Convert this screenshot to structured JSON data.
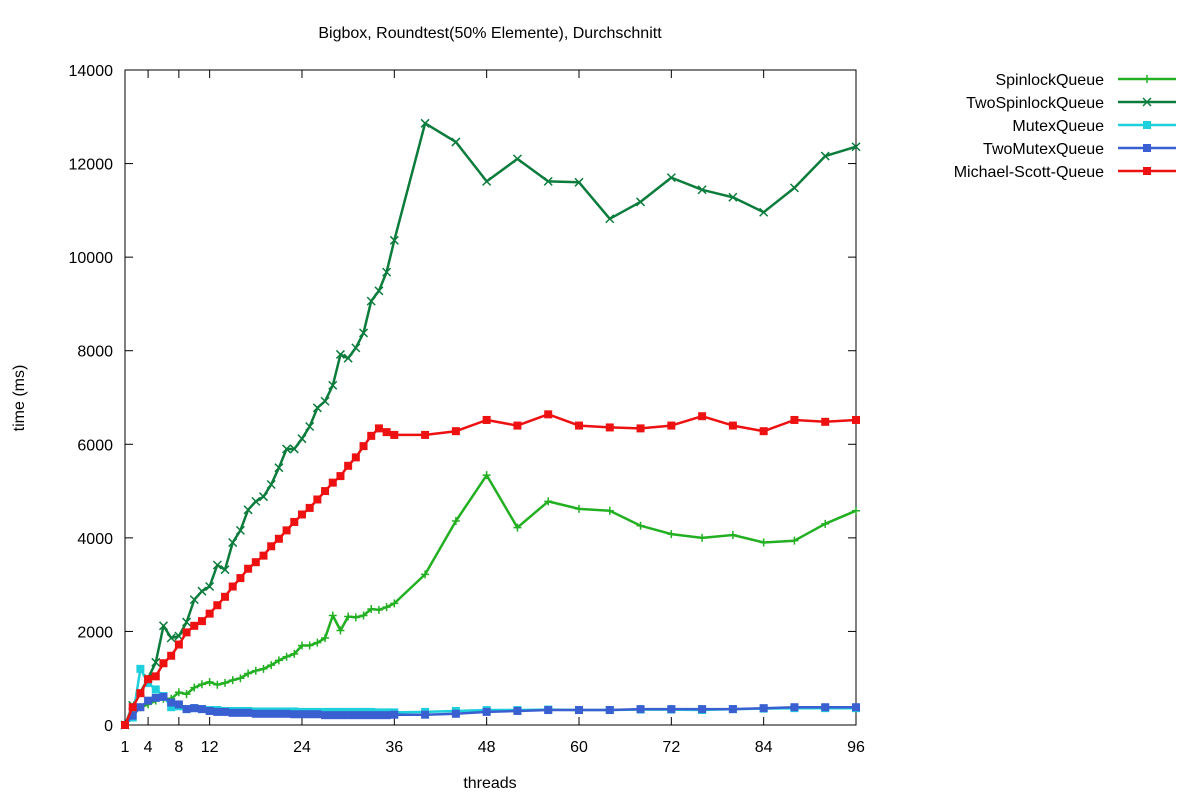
{
  "chart_data": {
    "type": "line",
    "title": "Bigbox, Roundtest(50% Elemente), Durchschnitt",
    "xlabel": "threads",
    "ylabel": "time (ms)",
    "xlim": [
      1,
      96
    ],
    "ylim": [
      0,
      14000
    ],
    "xticks": [
      1,
      4,
      8,
      12,
      24,
      36,
      48,
      60,
      72,
      84,
      96
    ],
    "yticks": [
      0,
      2000,
      4000,
      6000,
      8000,
      10000,
      12000,
      14000
    ],
    "grid": false,
    "legend_position": "top-right, outside plot",
    "series": [
      {
        "name": "SpinlockQueue",
        "color": "#22b022",
        "marker": "plus",
        "points": [
          [
            1,
            0
          ],
          [
            2,
            260
          ],
          [
            3,
            380
          ],
          [
            4,
            440
          ],
          [
            5,
            520
          ],
          [
            6,
            560
          ],
          [
            7,
            560
          ],
          [
            8,
            700
          ],
          [
            9,
            660
          ],
          [
            10,
            800
          ],
          [
            11,
            870
          ],
          [
            12,
            920
          ],
          [
            13,
            860
          ],
          [
            14,
            900
          ],
          [
            15,
            960
          ],
          [
            16,
            1000
          ],
          [
            17,
            1100
          ],
          [
            18,
            1160
          ],
          [
            19,
            1200
          ],
          [
            20,
            1280
          ],
          [
            21,
            1380
          ],
          [
            22,
            1460
          ],
          [
            23,
            1520
          ],
          [
            24,
            1700
          ],
          [
            25,
            1700
          ],
          [
            26,
            1760
          ],
          [
            27,
            1860
          ],
          [
            28,
            2340
          ],
          [
            29,
            2020
          ],
          [
            30,
            2320
          ],
          [
            31,
            2300
          ],
          [
            32,
            2340
          ],
          [
            33,
            2480
          ],
          [
            34,
            2460
          ],
          [
            35,
            2520
          ],
          [
            36,
            2600
          ],
          [
            40,
            3220
          ],
          [
            44,
            4360
          ],
          [
            48,
            5340
          ],
          [
            52,
            4220
          ],
          [
            56,
            4780
          ],
          [
            60,
            4620
          ],
          [
            64,
            4580
          ],
          [
            68,
            4260
          ],
          [
            72,
            4080
          ],
          [
            76,
            4000
          ],
          [
            80,
            4060
          ],
          [
            84,
            3900
          ],
          [
            88,
            3940
          ],
          [
            92,
            4300
          ],
          [
            96,
            4580
          ]
        ]
      },
      {
        "name": "TwoSpinlockQueue",
        "color": "#0b7c3c",
        "marker": "x",
        "points": [
          [
            1,
            0
          ],
          [
            2,
            420
          ],
          [
            3,
            700
          ],
          [
            4,
            1000
          ],
          [
            5,
            1340
          ],
          [
            6,
            2120
          ],
          [
            7,
            1860
          ],
          [
            8,
            1900
          ],
          [
            9,
            2200
          ],
          [
            10,
            2680
          ],
          [
            11,
            2860
          ],
          [
            12,
            2960
          ],
          [
            13,
            3420
          ],
          [
            14,
            3320
          ],
          [
            15,
            3900
          ],
          [
            16,
            4160
          ],
          [
            17,
            4600
          ],
          [
            18,
            4780
          ],
          [
            19,
            4880
          ],
          [
            20,
            5140
          ],
          [
            21,
            5500
          ],
          [
            22,
            5900
          ],
          [
            23,
            5900
          ],
          [
            24,
            6120
          ],
          [
            25,
            6380
          ],
          [
            26,
            6780
          ],
          [
            27,
            6920
          ],
          [
            28,
            7260
          ],
          [
            29,
            7920
          ],
          [
            30,
            7840
          ],
          [
            31,
            8060
          ],
          [
            32,
            8380
          ],
          [
            33,
            9060
          ],
          [
            34,
            9280
          ],
          [
            35,
            9680
          ],
          [
            36,
            10360
          ],
          [
            40,
            12860
          ],
          [
            44,
            12460
          ],
          [
            48,
            11620
          ],
          [
            52,
            12100
          ],
          [
            56,
            11620
          ],
          [
            60,
            11600
          ],
          [
            64,
            10820
          ],
          [
            68,
            11180
          ],
          [
            72,
            11700
          ],
          [
            76,
            11440
          ],
          [
            80,
            11280
          ],
          [
            84,
            10960
          ],
          [
            88,
            11480
          ],
          [
            92,
            12160
          ],
          [
            96,
            12360
          ]
        ]
      },
      {
        "name": "MutexQueue",
        "color": "#1ecfdc",
        "marker": "square",
        "points": [
          [
            1,
            0
          ],
          [
            2,
            160
          ],
          [
            3,
            1200
          ],
          [
            4,
            900
          ],
          [
            5,
            760
          ],
          [
            6,
            620
          ],
          [
            7,
            380
          ],
          [
            8,
            400
          ],
          [
            9,
            340
          ],
          [
            10,
            360
          ],
          [
            11,
            340
          ],
          [
            12,
            320
          ],
          [
            13,
            320
          ],
          [
            14,
            300
          ],
          [
            15,
            300
          ],
          [
            16,
            300
          ],
          [
            17,
            300
          ],
          [
            18,
            290
          ],
          [
            19,
            290
          ],
          [
            20,
            290
          ],
          [
            21,
            290
          ],
          [
            22,
            290
          ],
          [
            23,
            290
          ],
          [
            24,
            280
          ],
          [
            25,
            280
          ],
          [
            26,
            280
          ],
          [
            27,
            280
          ],
          [
            28,
            280
          ],
          [
            29,
            280
          ],
          [
            30,
            280
          ],
          [
            31,
            280
          ],
          [
            32,
            280
          ],
          [
            33,
            280
          ],
          [
            34,
            270
          ],
          [
            35,
            270
          ],
          [
            36,
            270
          ],
          [
            40,
            280
          ],
          [
            44,
            300
          ],
          [
            48,
            320
          ],
          [
            52,
            320
          ],
          [
            56,
            330
          ],
          [
            60,
            320
          ],
          [
            64,
            320
          ],
          [
            68,
            330
          ],
          [
            72,
            330
          ],
          [
            76,
            320
          ],
          [
            80,
            340
          ],
          [
            84,
            350
          ],
          [
            88,
            360
          ],
          [
            92,
            360
          ],
          [
            96,
            360
          ]
        ]
      },
      {
        "name": "TwoMutexQueue",
        "color": "#3a5fd0",
        "marker": "square",
        "points": [
          [
            1,
            0
          ],
          [
            2,
            200
          ],
          [
            3,
            380
          ],
          [
            4,
            520
          ],
          [
            5,
            580
          ],
          [
            6,
            600
          ],
          [
            7,
            480
          ],
          [
            8,
            440
          ],
          [
            9,
            340
          ],
          [
            10,
            360
          ],
          [
            11,
            340
          ],
          [
            12,
            300
          ],
          [
            13,
            280
          ],
          [
            14,
            280
          ],
          [
            15,
            260
          ],
          [
            16,
            260
          ],
          [
            17,
            260
          ],
          [
            18,
            240
          ],
          [
            19,
            240
          ],
          [
            20,
            240
          ],
          [
            21,
            240
          ],
          [
            22,
            240
          ],
          [
            23,
            230
          ],
          [
            24,
            230
          ],
          [
            25,
            230
          ],
          [
            26,
            230
          ],
          [
            27,
            210
          ],
          [
            28,
            210
          ],
          [
            29,
            210
          ],
          [
            30,
            210
          ],
          [
            31,
            210
          ],
          [
            32,
            210
          ],
          [
            33,
            210
          ],
          [
            34,
            210
          ],
          [
            35,
            210
          ],
          [
            36,
            220
          ],
          [
            40,
            220
          ],
          [
            44,
            240
          ],
          [
            48,
            280
          ],
          [
            52,
            300
          ],
          [
            56,
            320
          ],
          [
            60,
            320
          ],
          [
            64,
            320
          ],
          [
            68,
            340
          ],
          [
            72,
            340
          ],
          [
            76,
            340
          ],
          [
            80,
            340
          ],
          [
            84,
            360
          ],
          [
            88,
            380
          ],
          [
            92,
            380
          ],
          [
            96,
            380
          ]
        ]
      },
      {
        "name": "Michael-Scott-Queue",
        "color": "#ee1111",
        "marker": "filled-square",
        "points": [
          [
            1,
            0
          ],
          [
            2,
            380
          ],
          [
            3,
            680
          ],
          [
            4,
            980
          ],
          [
            5,
            1040
          ],
          [
            6,
            1320
          ],
          [
            7,
            1480
          ],
          [
            8,
            1720
          ],
          [
            9,
            1980
          ],
          [
            10,
            2120
          ],
          [
            11,
            2220
          ],
          [
            12,
            2380
          ],
          [
            13,
            2560
          ],
          [
            14,
            2740
          ],
          [
            15,
            2960
          ],
          [
            16,
            3140
          ],
          [
            17,
            3340
          ],
          [
            18,
            3480
          ],
          [
            19,
            3620
          ],
          [
            20,
            3820
          ],
          [
            21,
            3980
          ],
          [
            22,
            4160
          ],
          [
            23,
            4340
          ],
          [
            24,
            4500
          ],
          [
            25,
            4640
          ],
          [
            26,
            4820
          ],
          [
            27,
            5000
          ],
          [
            28,
            5180
          ],
          [
            29,
            5320
          ],
          [
            30,
            5540
          ],
          [
            31,
            5720
          ],
          [
            32,
            5960
          ],
          [
            33,
            6180
          ],
          [
            34,
            6340
          ],
          [
            35,
            6260
          ],
          [
            36,
            6200
          ],
          [
            40,
            6200
          ],
          [
            44,
            6280
          ],
          [
            48,
            6520
          ],
          [
            52,
            6400
          ],
          [
            56,
            6640
          ],
          [
            60,
            6400
          ],
          [
            64,
            6360
          ],
          [
            68,
            6340
          ],
          [
            72,
            6400
          ],
          [
            76,
            6600
          ],
          [
            80,
            6400
          ],
          [
            84,
            6280
          ],
          [
            88,
            6520
          ],
          [
            92,
            6480
          ],
          [
            96,
            6520
          ]
        ]
      }
    ]
  }
}
